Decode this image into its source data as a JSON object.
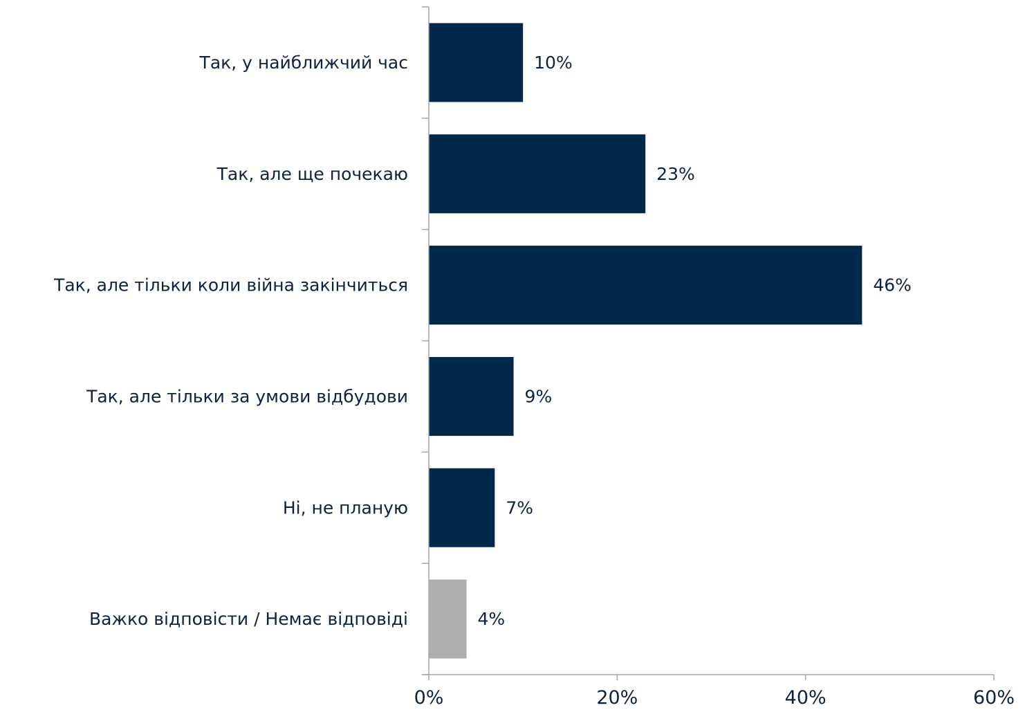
{
  "chart_data": {
    "type": "bar",
    "orientation": "horizontal",
    "categories": [
      "Так, у найближчий час",
      "Так, але ще почекаю",
      "Так, але тільки коли війна закінчиться",
      "Так, але тільки за умови відбудови",
      "Ні, не планую",
      "Важко відповісти / Немає відповіді"
    ],
    "values": [
      10,
      23,
      46,
      9,
      7,
      4
    ],
    "value_labels": [
      "10%",
      "23%",
      "46%",
      "9%",
      "7%",
      "4%"
    ],
    "bar_colors": [
      "#00284b",
      "#00284b",
      "#00284b",
      "#00284b",
      "#00284b",
      "#adadaf"
    ],
    "xlim": [
      0,
      60
    ],
    "x_ticks": [
      0,
      20,
      40,
      60
    ],
    "x_tick_labels": [
      "0%",
      "20%",
      "40%",
      "60%"
    ],
    "grid": false,
    "legend": "none"
  }
}
